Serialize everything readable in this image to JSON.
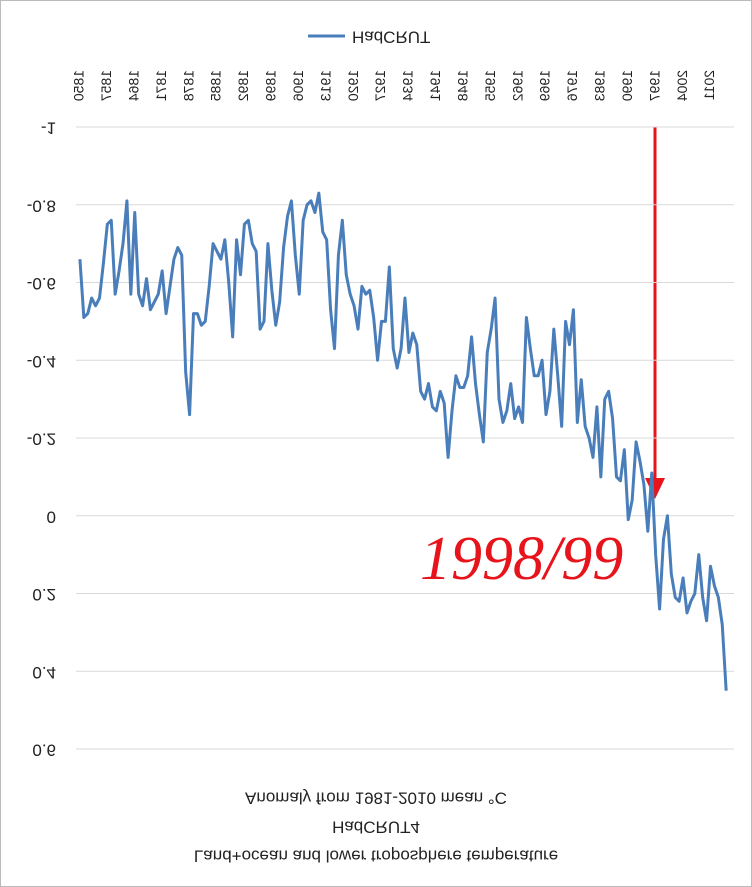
{
  "chart_data": {
    "type": "line",
    "title": [
      "Land+ocean  and lower troposphere  temperature",
      "HadCRUT4",
      "Anomaly  from  1981-2010 mean  °C"
    ],
    "annotation": "1998/99",
    "xlim": [
      1849,
      2017
    ],
    "xticks": [
      1850,
      1857,
      1864,
      1871,
      1878,
      1885,
      1892,
      1899,
      1906,
      1913,
      1920,
      1927,
      1934,
      1941,
      1948,
      1955,
      1962,
      1969,
      1976,
      1983,
      1990,
      1997,
      2004,
      2011
    ],
    "ylim": [
      0.6,
      -1
    ],
    "yticks": [
      -1,
      -0.8,
      -0.6,
      -0.4,
      -0.2,
      0,
      0.2,
      0.4,
      0.6
    ],
    "grid": true,
    "legend": "top",
    "x": [
      1850,
      1851,
      1852,
      1853,
      1854,
      1855,
      1856,
      1857,
      1858,
      1859,
      1860,
      1861,
      1862,
      1863,
      1864,
      1865,
      1866,
      1867,
      1868,
      1869,
      1870,
      1871,
      1872,
      1873,
      1874,
      1875,
      1876,
      1877,
      1878,
      1879,
      1880,
      1881,
      1882,
      1883,
      1884,
      1885,
      1886,
      1887,
      1888,
      1889,
      1890,
      1891,
      1892,
      1893,
      1894,
      1895,
      1896,
      1897,
      1898,
      1899,
      1900,
      1901,
      1902,
      1903,
      1904,
      1905,
      1906,
      1907,
      1908,
      1909,
      1910,
      1911,
      1912,
      1913,
      1914,
      1915,
      1916,
      1917,
      1918,
      1919,
      1920,
      1921,
      1922,
      1923,
      1924,
      1925,
      1926,
      1927,
      1928,
      1929,
      1930,
      1931,
      1932,
      1933,
      1934,
      1935,
      1936,
      1937,
      1938,
      1939,
      1940,
      1941,
      1942,
      1943,
      1944,
      1945,
      1946,
      1947,
      1948,
      1949,
      1950,
      1951,
      1952,
      1953,
      1954,
      1955,
      1956,
      1957,
      1958,
      1959,
      1960,
      1961,
      1962,
      1963,
      1964,
      1965,
      1966,
      1967,
      1968,
      1969,
      1970,
      1971,
      1972,
      1973,
      1974,
      1975,
      1976,
      1977,
      1978,
      1979,
      1980,
      1981,
      1982,
      1983,
      1984,
      1985,
      1986,
      1987,
      1988,
      1989,
      1990,
      1991,
      1992,
      1993,
      1994,
      1995,
      1996,
      1997,
      1998,
      1999,
      2000,
      2001,
      2002,
      2003,
      2004,
      2005,
      2006,
      2007,
      2008,
      2009,
      2010,
      2011,
      2012,
      2013,
      2014,
      2015
    ],
    "series": [
      {
        "name": "HadCRUT",
        "color": "#4a7ebb",
        "values": [
          -0.66,
          -0.51,
          -0.52,
          -0.56,
          -0.54,
          -0.56,
          -0.65,
          -0.75,
          -0.76,
          -0.57,
          -0.63,
          -0.7,
          -0.81,
          -0.57,
          -0.78,
          -0.57,
          -0.54,
          -0.61,
          -0.53,
          -0.55,
          -0.57,
          -0.63,
          -0.52,
          -0.59,
          -0.66,
          -0.69,
          -0.67,
          -0.37,
          -0.26,
          -0.52,
          -0.52,
          -0.49,
          -0.5,
          -0.59,
          -0.7,
          -0.68,
          -0.66,
          -0.71,
          -0.6,
          -0.46,
          -0.71,
          -0.62,
          -0.75,
          -0.76,
          -0.7,
          -0.68,
          -0.48,
          -0.5,
          -0.7,
          -0.58,
          -0.49,
          -0.55,
          -0.69,
          -0.77,
          -0.81,
          -0.67,
          -0.57,
          -0.76,
          -0.8,
          -0.81,
          -0.78,
          -0.83,
          -0.73,
          -0.71,
          -0.53,
          -0.43,
          -0.67,
          -0.76,
          -0.62,
          -0.57,
          -0.54,
          -0.48,
          -0.59,
          -0.57,
          -0.58,
          -0.51,
          -0.4,
          -0.5,
          -0.5,
          -0.64,
          -0.43,
          -0.38,
          -0.43,
          -0.56,
          -0.42,
          -0.47,
          -0.44,
          -0.32,
          -0.3,
          -0.34,
          -0.28,
          -0.27,
          -0.32,
          -0.29,
          -0.15,
          -0.27,
          -0.36,
          -0.33,
          -0.33,
          -0.36,
          -0.46,
          -0.34,
          -0.26,
          -0.19,
          -0.42,
          -0.48,
          -0.56,
          -0.3,
          -0.24,
          -0.27,
          -0.34,
          -0.25,
          -0.28,
          -0.24,
          -0.51,
          -0.43,
          -0.36,
          -0.36,
          -0.4,
          -0.26,
          -0.32,
          -0.48,
          -0.36,
          -0.23,
          -0.5,
          -0.44,
          -0.53,
          -0.24,
          -0.35,
          -0.23,
          -0.2,
          -0.15,
          -0.28,
          -0.1,
          -0.3,
          -0.32,
          -0.25,
          -0.1,
          -0.09,
          -0.17,
          0.01,
          -0.04,
          -0.19,
          -0.14,
          -0.08,
          0.04,
          -0.11,
          0.1,
          0.24,
          0.06,
          0.0,
          0.15,
          0.21,
          0.22,
          0.16,
          0.25,
          0.22,
          0.2,
          0.1,
          0.21,
          0.27,
          0.13,
          0.18,
          0.21,
          0.28,
          0.45
        ]
      }
    ]
  }
}
